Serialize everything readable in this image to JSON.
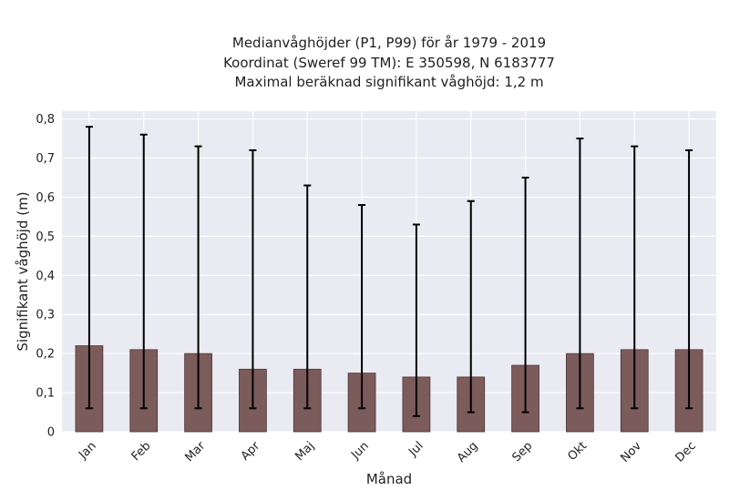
{
  "chart_data": {
    "type": "bar",
    "title_lines": [
      "Medianvåghöjder (P1, P99) för år 1979 - 2019",
      "Koordinat (Sweref 99 TM): E 350598, N 6183777",
      "Maximal beräknad signifikant våghöjd: 1,2 m"
    ],
    "xlabel": "Månad",
    "ylabel": "Signifikant våghöjd (m)",
    "categories": [
      "Jan",
      "Feb",
      "Mar",
      "Apr",
      "Maj",
      "Jun",
      "Jul",
      "Aug",
      "Sep",
      "Okt",
      "Nov",
      "Dec"
    ],
    "values": [
      0.22,
      0.21,
      0.2,
      0.16,
      0.16,
      0.15,
      0.14,
      0.14,
      0.17,
      0.2,
      0.21,
      0.21
    ],
    "p1": [
      0.06,
      0.06,
      0.06,
      0.06,
      0.06,
      0.06,
      0.04,
      0.05,
      0.05,
      0.06,
      0.06,
      0.06
    ],
    "p99": [
      0.78,
      0.76,
      0.73,
      0.72,
      0.63,
      0.58,
      0.53,
      0.59,
      0.65,
      0.75,
      0.73,
      0.72
    ],
    "ylim": [
      0,
      0.82
    ],
    "yticks": [
      0,
      0.1,
      0.2,
      0.3,
      0.4,
      0.5,
      0.6,
      0.7,
      0.8
    ],
    "ytick_labels": [
      "0",
      "0,1",
      "0,2",
      "0,3",
      "0,4",
      "0,5",
      "0,6",
      "0,7",
      "0,8"
    ],
    "grid": true,
    "colors": {
      "bar": "#7c5b5b",
      "bar_edge": "#4a3535",
      "errorbar": "#000000",
      "plot_background": "#eaeaf2",
      "grid": "#ffffff"
    }
  }
}
